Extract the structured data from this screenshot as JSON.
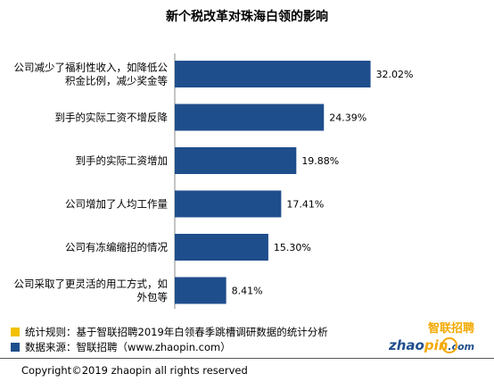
{
  "chart_data": {
    "type": "bar",
    "orientation": "horizontal",
    "title": "新个税改革对珠海白领的影响",
    "categories": [
      [
        "公司减少了福利性收入，如降低公",
        "积金比例，减少奖金等"
      ],
      [
        "到手的实际工资不增反降"
      ],
      [
        "到手的实际工资增加"
      ],
      [
        "公司增加了人均工作量"
      ],
      [
        "公司有冻编缩招的情况"
      ],
      [
        "公司采取了更灵活的用工方式，如",
        "外包等"
      ]
    ],
    "values": [
      32.02,
      24.39,
      19.88,
      17.41,
      15.3,
      8.41
    ],
    "value_labels": [
      "32.02%",
      "24.39%",
      "19.88%",
      "17.41%",
      "15.30%",
      "8.41%"
    ],
    "xlim": [
      0,
      35
    ],
    "bar_color": "#1f4e8c",
    "grid": false
  },
  "notes": [
    {
      "text": "统计规则：基于智联招聘2019年白领春季跳槽调研数据的统计分析",
      "color": "#f2c200"
    },
    {
      "text": "数据来源：智联招聘（www.zhaopin.com）",
      "color": "#1f4e8c"
    }
  ],
  "copyright": "Copyright©2019 zhaopin all rights reserved",
  "logo": {
    "cn": "智联招聘",
    "en_a": "zhao",
    "en_b": "pin",
    "en_c": ".com"
  }
}
